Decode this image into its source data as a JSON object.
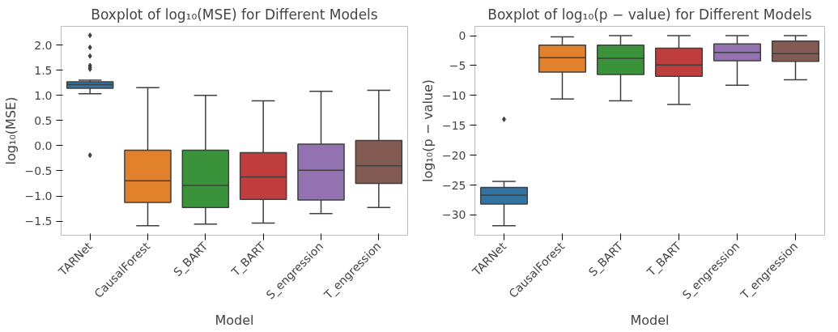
{
  "chart_data": [
    {
      "type": "box",
      "title": "Boxplot of log₁₀(MSE) for Different Models",
      "xlabel": "Model",
      "ylabel": "log₁₀(MSE)",
      "categories": [
        "TARNet",
        "CausalForest",
        "S_BART",
        "T_BART",
        "S_engression",
        "T_engression"
      ],
      "colors": [
        "#3274a1",
        "#e1812c",
        "#3a923a",
        "#c03d3e",
        "#9372b2",
        "#845b53"
      ],
      "boxes": [
        {
          "low": 1.03,
          "q1": 1.14,
          "median": 1.21,
          "q3": 1.27,
          "high": 1.3,
          "outliers": [
            2.19,
            1.95,
            1.78,
            1.59,
            1.55,
            1.52,
            -0.19
          ]
        },
        {
          "low": -1.59,
          "q1": -1.13,
          "median": -0.7,
          "q3": -0.09,
          "high": 1.15
        },
        {
          "low": -1.56,
          "q1": -1.23,
          "median": -0.79,
          "q3": -0.09,
          "high": 1.0
        },
        {
          "low": -1.54,
          "q1": -1.07,
          "median": -0.62,
          "q3": -0.14,
          "high": 0.89
        },
        {
          "low": -1.35,
          "q1": -1.08,
          "median": -0.49,
          "q3": 0.03,
          "high": 1.08
        },
        {
          "low": -1.23,
          "q1": -0.75,
          "median": -0.4,
          "q3": 0.1,
          "high": 1.1
        }
      ],
      "ylim": [
        -1.78,
        2.37
      ],
      "yticks": [
        {
          "value": -1.5,
          "label": "−1.5"
        },
        {
          "value": -1.0,
          "label": "−1.0"
        },
        {
          "value": -0.5,
          "label": "−0.5"
        },
        {
          "value": 0,
          "label": "0.0"
        },
        {
          "value": 0.5,
          "label": "0.5"
        },
        {
          "value": 1.0,
          "label": "1.0"
        },
        {
          "value": 1.5,
          "label": "1.5"
        },
        {
          "value": 2.0,
          "label": "2.0"
        }
      ],
      "marker": "diamond",
      "grid": false
    },
    {
      "type": "box",
      "title": "Boxplot of log₁₀(p − value) for Different Models",
      "xlabel": "Model",
      "ylabel": "log₁₀(p − value)",
      "categories": [
        "TARNet",
        "CausalForest",
        "S_BART",
        "T_BART",
        "S_engression",
        "T_engression"
      ],
      "colors": [
        "#3274a1",
        "#e1812c",
        "#3a923a",
        "#c03d3e",
        "#9372b2",
        "#845b53"
      ],
      "boxes": [
        {
          "low": -31.8,
          "q1": -28.2,
          "median": -26.7,
          "q3": -25.4,
          "high": -24.4,
          "outliers": [
            -14.0
          ]
        },
        {
          "low": -10.6,
          "q1": -6.1,
          "median": -3.7,
          "q3": -1.6,
          "high": -0.2
        },
        {
          "low": -10.9,
          "q1": -6.5,
          "median": -3.8,
          "q3": -1.6,
          "high": 0
        },
        {
          "low": -11.5,
          "q1": -6.8,
          "median": -4.9,
          "q3": -2.1,
          "high": 0
        },
        {
          "low": -8.3,
          "q1": -4.2,
          "median": -2.8,
          "q3": -1.4,
          "high": 0
        },
        {
          "low": -7.4,
          "q1": -4.3,
          "median": -3.0,
          "q3": -0.9,
          "high": 0
        }
      ],
      "ylim": [
        -33.4,
        1.56
      ],
      "yticks": [
        {
          "value": -30,
          "label": "−30"
        },
        {
          "value": -25,
          "label": "−25"
        },
        {
          "value": -20,
          "label": "−20"
        },
        {
          "value": -15,
          "label": "−15"
        },
        {
          "value": -10,
          "label": "−10"
        },
        {
          "value": -5,
          "label": "−5"
        },
        0
      ],
      "marker": "diamond",
      "grid": false
    }
  ]
}
